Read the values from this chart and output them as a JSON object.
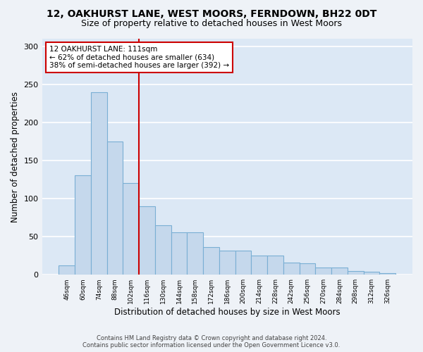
{
  "title": "12, OAKHURST LANE, WEST MOORS, FERNDOWN, BH22 0DT",
  "subtitle": "Size of property relative to detached houses in West Moors",
  "xlabel": "Distribution of detached houses by size in West Moors",
  "ylabel": "Number of detached properties",
  "footer_line1": "Contains HM Land Registry data © Crown copyright and database right 2024.",
  "footer_line2": "Contains public sector information licensed under the Open Government Licence v3.0.",
  "bar_labels": [
    "46sqm",
    "60sqm",
    "74sqm",
    "88sqm",
    "102sqm",
    "116sqm",
    "130sqm",
    "144sqm",
    "158sqm",
    "172sqm",
    "186sqm",
    "200sqm",
    "214sqm",
    "228sqm",
    "242sqm",
    "256sqm",
    "270sqm",
    "284sqm",
    "298sqm",
    "312sqm",
    "326sqm"
  ],
  "bar_values": [
    12,
    131,
    240,
    175,
    120,
    90,
    65,
    56,
    56,
    36,
    32,
    32,
    25,
    25,
    16,
    15,
    9,
    9,
    5,
    4,
    2
  ],
  "bar_color": "#c5d8ec",
  "bar_edge_color": "#7aafd4",
  "vline_x": 4.5,
  "vline_color": "#cc0000",
  "annotation_text": "12 OAKHURST LANE: 111sqm\n← 62% of detached houses are smaller (634)\n38% of semi-detached houses are larger (392) →",
  "annotation_box_color": "#ffffff",
  "annotation_box_edge": "#cc0000",
  "ylim": [
    0,
    310
  ],
  "yticks": [
    0,
    50,
    100,
    150,
    200,
    250,
    300
  ],
  "background_color": "#eef2f7",
  "plot_bg_color": "#dce8f5",
  "grid_color": "#ffffff",
  "title_fontsize": 10,
  "subtitle_fontsize": 9,
  "xlabel_fontsize": 8.5,
  "ylabel_fontsize": 8.5
}
